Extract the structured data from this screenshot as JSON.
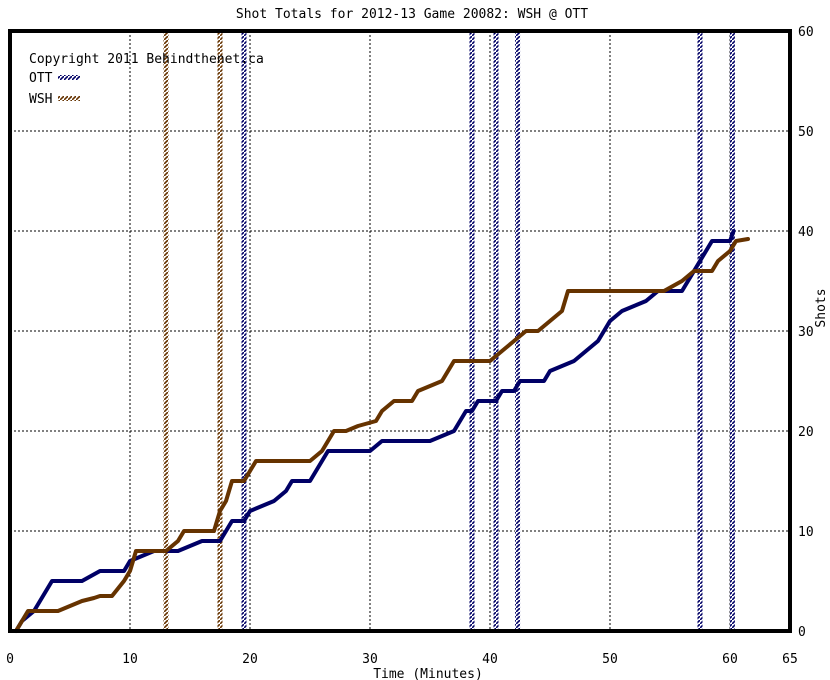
{
  "chart_data": {
    "type": "line",
    "title": "Shot Totals for 2012-13 Game 20082: WSH @ OTT",
    "xlabel": "Time (Minutes)",
    "ylabel": "Shots",
    "xlim": [
      0,
      65
    ],
    "ylim": [
      0,
      60
    ],
    "x_ticks": [
      "0",
      "10",
      "20",
      "30",
      "40",
      "50",
      "60",
      "65"
    ],
    "y_ticks": [
      "0",
      "10",
      "20",
      "30",
      "40",
      "50",
      "60"
    ],
    "copyright": "Copyright 2011 Behindthenet.ca",
    "legend_position": "top-left",
    "grid": true,
    "series": [
      {
        "name": "OTT",
        "color": "#000066",
        "points": [
          [
            0,
            0
          ],
          [
            0.5,
            0
          ],
          [
            1,
            1
          ],
          [
            2,
            2
          ],
          [
            2.5,
            3
          ],
          [
            3,
            4
          ],
          [
            3.5,
            5
          ],
          [
            6,
            5
          ],
          [
            7.5,
            6
          ],
          [
            9.5,
            6
          ],
          [
            10,
            7
          ],
          [
            11,
            7.5
          ],
          [
            12,
            8
          ],
          [
            14,
            8
          ],
          [
            15,
            8.5
          ],
          [
            16,
            9
          ],
          [
            17.5,
            9
          ],
          [
            18,
            10
          ],
          [
            18.5,
            11
          ],
          [
            19.5,
            11
          ],
          [
            20,
            12
          ],
          [
            22,
            13
          ],
          [
            23,
            14
          ],
          [
            23.5,
            15
          ],
          [
            25,
            15
          ],
          [
            25.5,
            16
          ],
          [
            26,
            17
          ],
          [
            26.5,
            18
          ],
          [
            28,
            18
          ],
          [
            30,
            18
          ],
          [
            31,
            19
          ],
          [
            32,
            19
          ],
          [
            35,
            19
          ],
          [
            37,
            20
          ],
          [
            37.5,
            21
          ],
          [
            38,
            22
          ],
          [
            38.5,
            22
          ],
          [
            39,
            23
          ],
          [
            40.5,
            23
          ],
          [
            41,
            24
          ],
          [
            42,
            24
          ],
          [
            42.5,
            25
          ],
          [
            44.5,
            25
          ],
          [
            45,
            26
          ],
          [
            46,
            26.5
          ],
          [
            47,
            27
          ],
          [
            48,
            28
          ],
          [
            49,
            29
          ],
          [
            49.5,
            30
          ],
          [
            50,
            31
          ],
          [
            51,
            32
          ],
          [
            52,
            32.5
          ],
          [
            53,
            33
          ],
          [
            54,
            34
          ],
          [
            56,
            34
          ],
          [
            57,
            36
          ],
          [
            57.5,
            37
          ],
          [
            58,
            38
          ],
          [
            58.5,
            39
          ],
          [
            60,
            39
          ],
          [
            60.3,
            40
          ]
        ]
      },
      {
        "name": "WSH",
        "color": "#663300",
        "points": [
          [
            0.5,
            0
          ],
          [
            1,
            1
          ],
          [
            1.5,
            2
          ],
          [
            3,
            2
          ],
          [
            4,
            2
          ],
          [
            6,
            3
          ],
          [
            7,
            3.3
          ],
          [
            7.5,
            3.5
          ],
          [
            8.5,
            3.5
          ],
          [
            9.5,
            5
          ],
          [
            10,
            6
          ],
          [
            10.5,
            8
          ],
          [
            13,
            8
          ],
          [
            14,
            9
          ],
          [
            14.5,
            10
          ],
          [
            17,
            10
          ],
          [
            17.5,
            12
          ],
          [
            18,
            13
          ],
          [
            18.5,
            15
          ],
          [
            19.5,
            15
          ],
          [
            20,
            16
          ],
          [
            20.5,
            17
          ],
          [
            25,
            17
          ],
          [
            26,
            18
          ],
          [
            26.5,
            19
          ],
          [
            27,
            20
          ],
          [
            28,
            20
          ],
          [
            29,
            20.5
          ],
          [
            30.5,
            21
          ],
          [
            31,
            22
          ],
          [
            32,
            23
          ],
          [
            33.5,
            23
          ],
          [
            34,
            24
          ],
          [
            36,
            25
          ],
          [
            37,
            27
          ],
          [
            40,
            27
          ],
          [
            41,
            28
          ],
          [
            42,
            29
          ],
          [
            43,
            30
          ],
          [
            44,
            30
          ],
          [
            45,
            31
          ],
          [
            46,
            32
          ],
          [
            46.5,
            34
          ],
          [
            54.5,
            34
          ],
          [
            56,
            35
          ],
          [
            57,
            36
          ],
          [
            58.5,
            36
          ],
          [
            59,
            37
          ],
          [
            60,
            38
          ],
          [
            60.5,
            39
          ],
          [
            61.5,
            39.2
          ]
        ]
      }
    ],
    "vlines": [
      {
        "x": 13,
        "color": "#663300"
      },
      {
        "x": 17.5,
        "color": "#663300"
      },
      {
        "x": 19.5,
        "color": "#000066"
      },
      {
        "x": 38.5,
        "color": "#000066"
      },
      {
        "x": 40.5,
        "color": "#000066"
      },
      {
        "x": 42.3,
        "color": "#000066"
      },
      {
        "x": 57.5,
        "color": "#000066"
      },
      {
        "x": 60.2,
        "color": "#000066"
      }
    ]
  }
}
